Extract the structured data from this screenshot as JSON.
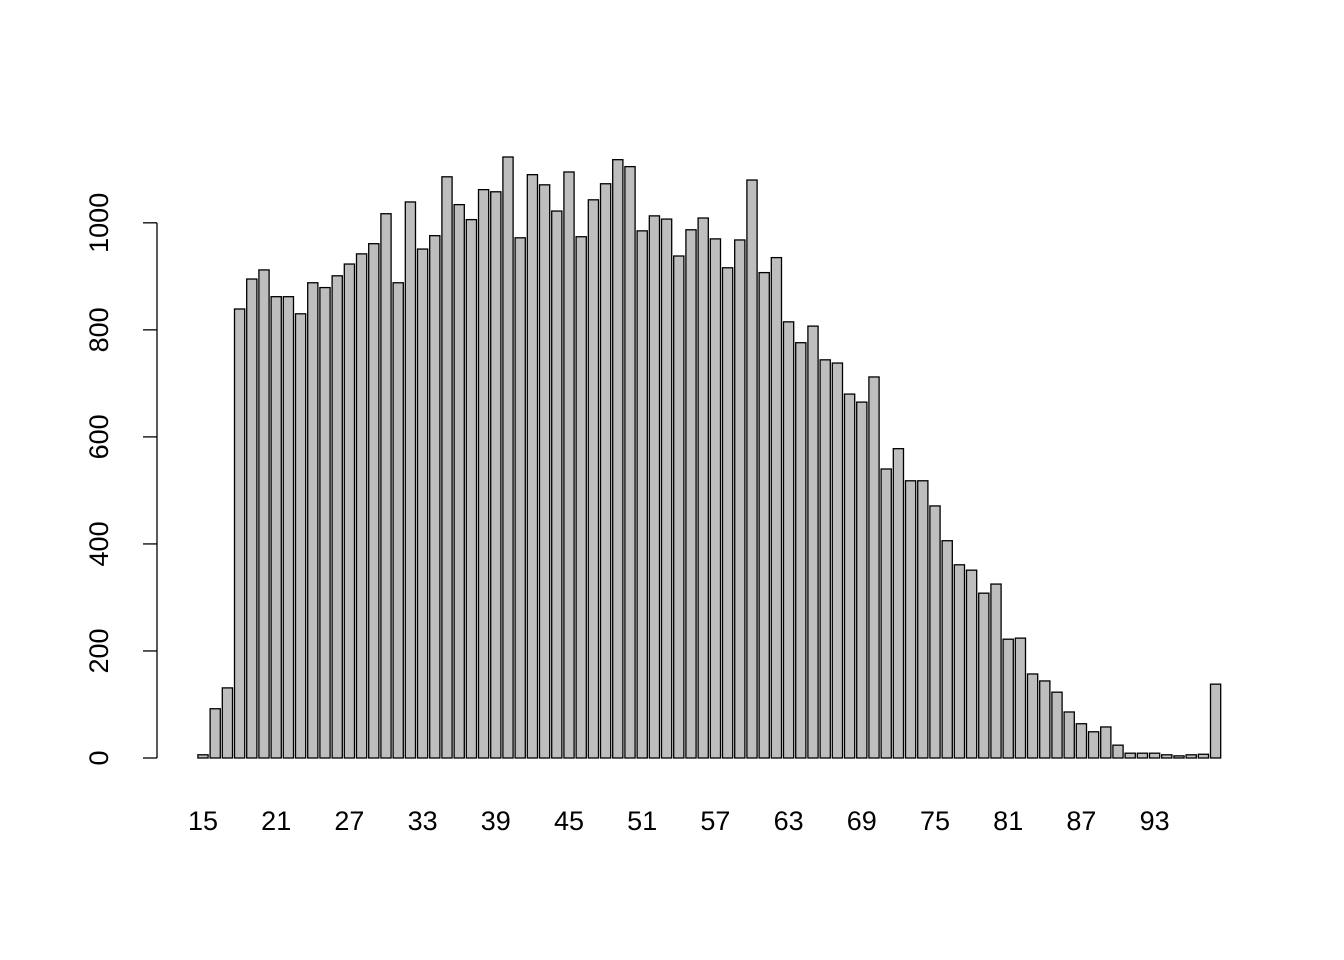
{
  "chart_data": {
    "type": "bar",
    "categories": [
      "15",
      null,
      null,
      null,
      null,
      null,
      "21",
      null,
      null,
      null,
      null,
      null,
      "27",
      null,
      null,
      null,
      null,
      null,
      "33",
      null,
      null,
      null,
      null,
      null,
      "39",
      null,
      null,
      null,
      null,
      null,
      "45",
      null,
      null,
      null,
      null,
      null,
      "51",
      null,
      null,
      null,
      null,
      null,
      "57",
      null,
      null,
      null,
      null,
      null,
      "63",
      null,
      null,
      null,
      null,
      null,
      "69",
      null,
      null,
      null,
      null,
      null,
      "75",
      null,
      null,
      null,
      null,
      null,
      "81",
      null,
      null,
      null,
      null,
      null,
      "87",
      null,
      null,
      null,
      null,
      null,
      "93",
      null,
      null,
      null,
      null,
      null
    ],
    "values": [
      6,
      92,
      131,
      839,
      895,
      912,
      862,
      862,
      830,
      888,
      879,
      901,
      923,
      942,
      961,
      1017,
      888,
      1039,
      951,
      976,
      1086,
      1034,
      1006,
      1062,
      1058,
      1123,
      972,
      1090,
      1071,
      1022,
      1095,
      974,
      1043,
      1073,
      1118,
      1105,
      985,
      1013,
      1007,
      938,
      987,
      1009,
      970,
      916,
      968,
      1080,
      907,
      935,
      815,
      776,
      807,
      744,
      738,
      680,
      665,
      712,
      540,
      578,
      518,
      518,
      471,
      406,
      361,
      351,
      308,
      325,
      222,
      224,
      157,
      144,
      123,
      86,
      64,
      49,
      58,
      24,
      9,
      9,
      9,
      6,
      4,
      6,
      7,
      138
    ],
    "color": "#bebebe",
    "ylim": [
      0,
      1123
    ],
    "yticks": [
      0,
      200,
      400,
      600,
      800,
      1000
    ]
  }
}
